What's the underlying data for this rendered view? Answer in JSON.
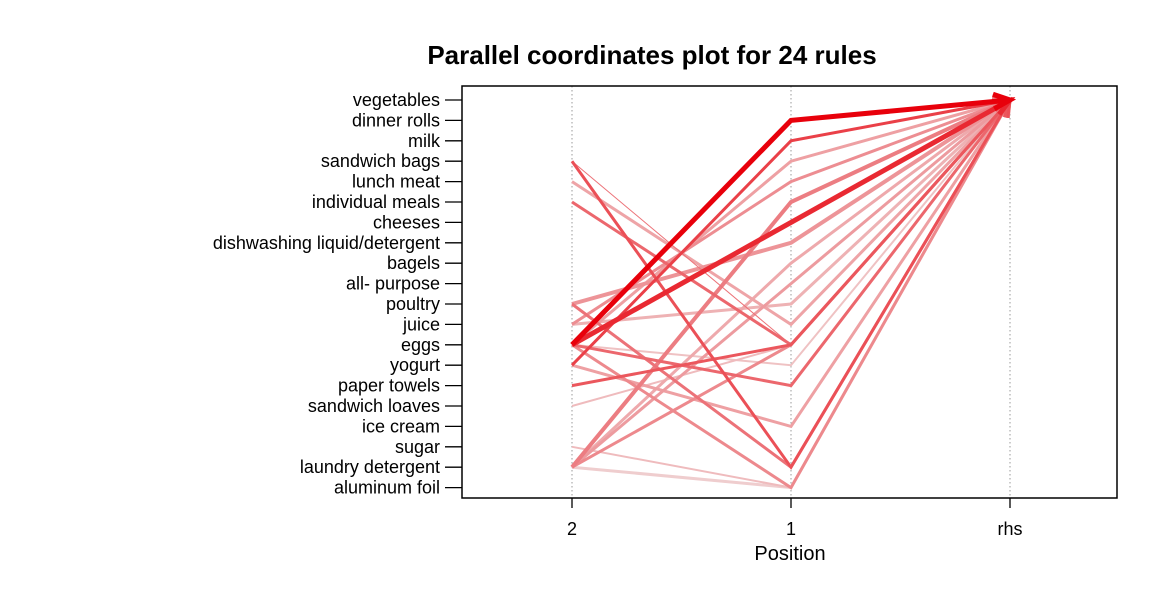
{
  "chart_data": {
    "type": "parallel-coordinates",
    "title": "Parallel coordinates plot for 24 rules",
    "xlabel": "Position",
    "x_ticks": [
      "2",
      "1",
      "rhs"
    ],
    "y_items": [
      "vegetables",
      "dinner rolls",
      "milk",
      "sandwich bags",
      "lunch meat",
      "individual meals",
      "cheeses",
      "dishwashing liquid/detergent",
      "bagels",
      "all- purpose",
      "poultry",
      "juice",
      "eggs",
      "yogurt",
      "paper towels",
      "sandwich loaves",
      "ice cream",
      "sugar",
      "laundry detergent",
      "aluminum foil"
    ],
    "grid": "vertical dotted at positions",
    "color_scale": {
      "high": "#e8000b",
      "low": "#f0e4e4"
    },
    "rules": [
      {
        "lhs2": "eggs",
        "lhs1": "dinner rolls",
        "rhs": "vegetables",
        "strength": 1.0,
        "width": 5
      },
      {
        "lhs2": "eggs",
        "lhs1": "cheeses",
        "rhs": "vegetables",
        "strength": 0.82,
        "width": 5
      },
      {
        "lhs2": "yogurt",
        "lhs1": "milk",
        "rhs": "vegetables",
        "strength": 0.72,
        "width": 3
      },
      {
        "lhs2": "sandwich bags",
        "lhs1": "laundry detergent",
        "rhs": "vegetables",
        "strength": 0.65,
        "width": 3
      },
      {
        "lhs2": "paper towels",
        "lhs1": "eggs",
        "rhs": "vegetables",
        "strength": 0.62,
        "width": 3
      },
      {
        "lhs2": "individual meals",
        "lhs1": "eggs",
        "rhs": "vegetables",
        "strength": 0.55,
        "width": 3
      },
      {
        "lhs2": "eggs",
        "lhs1": "paper towels",
        "rhs": "vegetables",
        "strength": 0.55,
        "width": 3
      },
      {
        "lhs2": "poultry",
        "lhs1": "laundry detergent",
        "rhs": "vegetables",
        "strength": 0.5,
        "width": 3
      },
      {
        "lhs2": "laundry detergent",
        "lhs1": "individual meals",
        "rhs": "vegetables",
        "strength": 0.45,
        "width": 4
      },
      {
        "lhs2": "laundry detergent",
        "lhs1": "eggs",
        "rhs": "vegetables",
        "strength": 0.4,
        "width": 3
      },
      {
        "lhs2": "eggs",
        "lhs1": "aluminum foil",
        "rhs": "vegetables",
        "strength": 0.4,
        "width": 3
      },
      {
        "lhs2": "juice",
        "lhs1": "lunch meat",
        "rhs": "vegetables",
        "strength": 0.38,
        "width": 3
      },
      {
        "lhs2": "poultry",
        "lhs1": "dishwashing liquid/detergent",
        "rhs": "vegetables",
        "strength": 0.35,
        "width": 4
      },
      {
        "lhs2": "laundry detergent",
        "lhs1": "all- purpose",
        "rhs": "vegetables",
        "strength": 0.32,
        "width": 3
      },
      {
        "lhs2": "eggs",
        "lhs1": "sandwich bags",
        "rhs": "vegetables",
        "strength": 0.3,
        "width": 3
      },
      {
        "lhs2": "yogurt",
        "lhs1": "ice cream",
        "rhs": "vegetables",
        "strength": 0.3,
        "width": 3
      },
      {
        "lhs2": "sandwich bags",
        "lhs1": "eggs",
        "rhs": "vegetables",
        "strength": 0.5,
        "width": 1
      },
      {
        "lhs2": "lunch meat",
        "lhs1": "juice",
        "rhs": "vegetables",
        "strength": 0.28,
        "width": 3
      },
      {
        "lhs2": "laundry detergent",
        "lhs1": "bagels",
        "rhs": "vegetables",
        "strength": 0.26,
        "width": 3
      },
      {
        "lhs2": "juice",
        "lhs1": "poultry",
        "rhs": "vegetables",
        "strength": 0.22,
        "width": 3
      },
      {
        "lhs2": "sandwich loaves",
        "lhs1": "eggs",
        "rhs": "vegetables",
        "strength": 0.18,
        "width": 2
      },
      {
        "lhs2": "sugar",
        "lhs1": "aluminum foil",
        "rhs": "vegetables",
        "strength": 0.18,
        "width": 2
      },
      {
        "lhs2": "laundry detergent",
        "lhs1": "aluminum foil",
        "rhs": "vegetables",
        "strength": 0.1,
        "width": 3
      },
      {
        "lhs2": "eggs",
        "lhs1": "yogurt",
        "rhs": "vegetables",
        "strength": 0.15,
        "width": 2
      }
    ]
  }
}
